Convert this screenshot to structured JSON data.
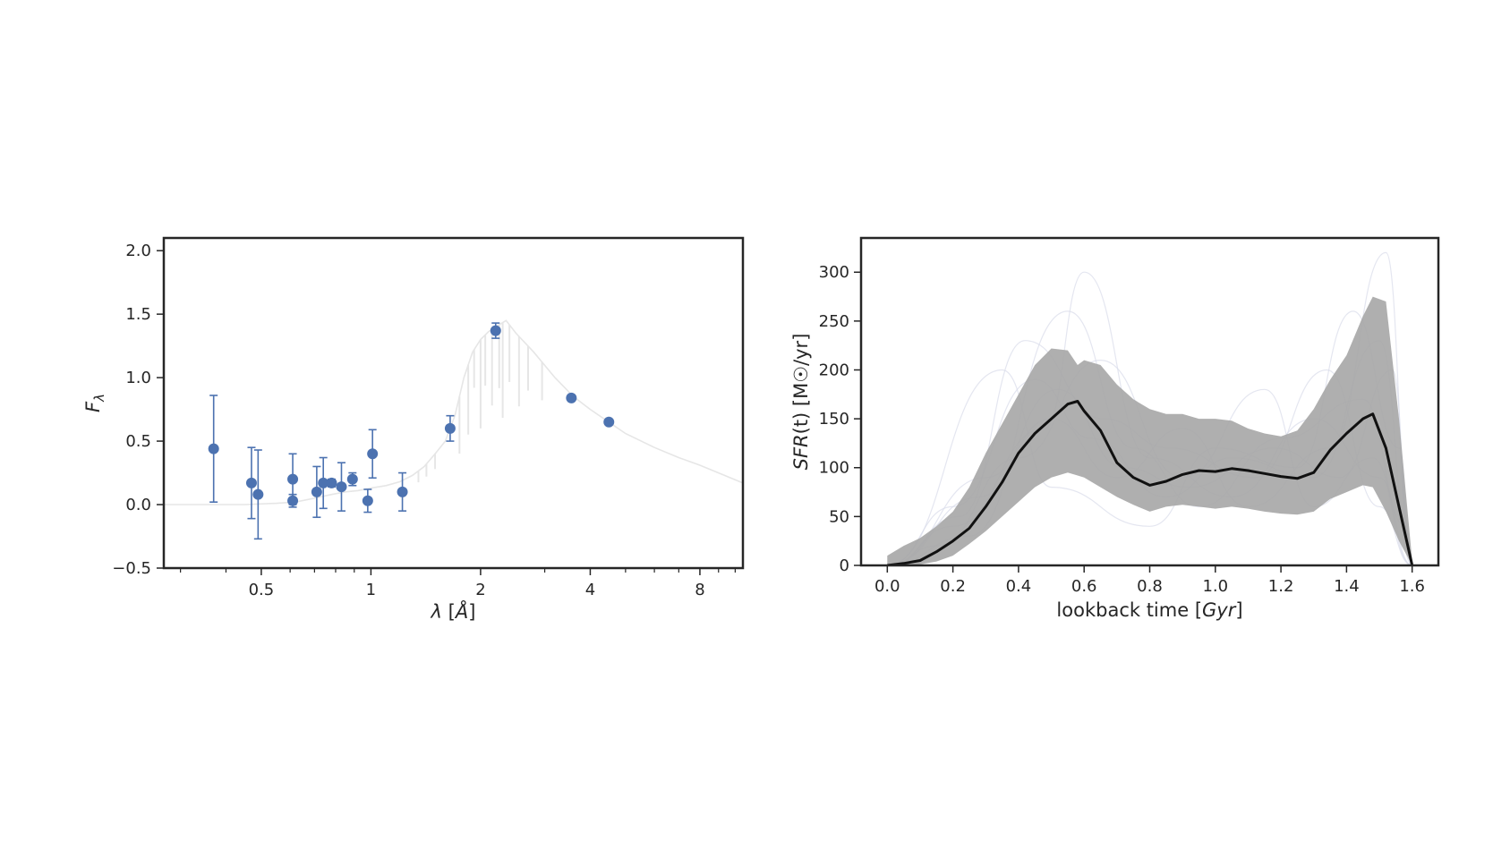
{
  "chart_data": [
    {
      "type": "scatter",
      "title": "",
      "xlabel": "λ [Å]",
      "ylabel": "F_λ",
      "ylabel_main": "F",
      "ylabel_sub": "λ",
      "xscale": "log",
      "xlim": [
        0.27,
        10.5
      ],
      "ylim": [
        -0.5,
        2.1
      ],
      "xticks": [
        {
          "value": 0.5,
          "label": "0.5"
        },
        {
          "value": 1,
          "label": "1"
        },
        {
          "value": 2,
          "label": "2"
        },
        {
          "value": 4,
          "label": "4"
        },
        {
          "value": 8,
          "label": "8"
        }
      ],
      "xticks_minor": [
        0.3,
        0.4,
        0.6,
        0.7,
        0.8,
        0.9,
        3,
        5,
        6,
        7,
        9,
        10
      ],
      "yticks": [
        {
          "value": -0.5,
          "label": "−0.5"
        },
        {
          "value": 0.0,
          "label": "0.0"
        },
        {
          "value": 0.5,
          "label": "0.5"
        },
        {
          "value": 1.0,
          "label": "1.0"
        },
        {
          "value": 1.5,
          "label": "1.5"
        },
        {
          "value": 2.0,
          "label": "2.0"
        }
      ],
      "grid": false,
      "colors": {
        "points": "#4c72b0",
        "model": "#e6e6e6",
        "frame": "#262626"
      },
      "points": [
        {
          "x": 0.37,
          "y": 0.44,
          "err": 0.42
        },
        {
          "x": 0.47,
          "y": 0.17,
          "err": 0.28
        },
        {
          "x": 0.49,
          "y": 0.08,
          "err": 0.35
        },
        {
          "x": 0.61,
          "y": 0.2,
          "err": 0.2
        },
        {
          "x": 0.61,
          "y": 0.03,
          "err": 0.05
        },
        {
          "x": 0.71,
          "y": 0.1,
          "err": 0.2
        },
        {
          "x": 0.74,
          "y": 0.17,
          "err": 0.2
        },
        {
          "x": 0.78,
          "y": 0.17,
          "err": 0.03
        },
        {
          "x": 0.83,
          "y": 0.14,
          "err": 0.19
        },
        {
          "x": 0.89,
          "y": 0.2,
          "err": 0.05
        },
        {
          "x": 0.98,
          "y": 0.03,
          "err": 0.09
        },
        {
          "x": 1.01,
          "y": 0.4,
          "err": 0.19
        },
        {
          "x": 1.22,
          "y": 0.1,
          "err": 0.15
        },
        {
          "x": 1.65,
          "y": 0.6,
          "err": 0.1
        },
        {
          "x": 2.2,
          "y": 1.37,
          "err": 0.06
        },
        {
          "x": 3.55,
          "y": 0.84,
          "err": 0.02
        },
        {
          "x": 4.5,
          "y": 0.65,
          "err": 0.02
        }
      ],
      "model_curve": [
        [
          0.27,
          0.0
        ],
        [
          0.45,
          0.0
        ],
        [
          0.55,
          0.01
        ],
        [
          0.62,
          0.02
        ],
        [
          0.7,
          0.05
        ],
        [
          0.78,
          0.08
        ],
        [
          0.85,
          0.1
        ],
        [
          0.92,
          0.11
        ],
        [
          1.0,
          0.13
        ],
        [
          1.1,
          0.15
        ],
        [
          1.2,
          0.18
        ],
        [
          1.3,
          0.23
        ],
        [
          1.4,
          0.3
        ],
        [
          1.5,
          0.4
        ],
        [
          1.6,
          0.5
        ],
        [
          1.7,
          0.7
        ],
        [
          1.8,
          1.0
        ],
        [
          1.9,
          1.2
        ],
        [
          2.0,
          1.3
        ],
        [
          2.1,
          1.36
        ],
        [
          2.2,
          1.4
        ],
        [
          2.35,
          1.45
        ],
        [
          2.5,
          1.35
        ],
        [
          2.8,
          1.2
        ],
        [
          3.2,
          1.0
        ],
        [
          3.6,
          0.85
        ],
        [
          4.0,
          0.75
        ],
        [
          4.5,
          0.65
        ],
        [
          5.0,
          0.56
        ],
        [
          6.0,
          0.45
        ],
        [
          7.0,
          0.37
        ],
        [
          8.0,
          0.31
        ],
        [
          9.0,
          0.25
        ],
        [
          10.5,
          0.17
        ]
      ],
      "absorption_lines": [
        [
          1.75,
          0.45
        ],
        [
          1.85,
          0.55
        ],
        [
          1.92,
          0.3
        ],
        [
          2.0,
          0.7
        ],
        [
          2.06,
          0.4
        ],
        [
          2.15,
          0.6
        ],
        [
          2.25,
          0.5
        ],
        [
          2.3,
          0.75
        ],
        [
          2.4,
          0.45
        ],
        [
          2.55,
          0.55
        ],
        [
          2.7,
          0.35
        ],
        [
          2.95,
          0.3
        ],
        [
          1.5,
          0.12
        ],
        [
          1.42,
          0.1
        ],
        [
          1.35,
          0.09
        ]
      ]
    },
    {
      "type": "line",
      "title": "",
      "xlabel": "lookback time [Gyr]",
      "xlabel_main": "lookback time [",
      "xlabel_italic": "Gyr",
      "xlabel_end": "]",
      "ylabel": "SFR(t) [M☉/yr]",
      "ylabel_italic": "SFR",
      "ylabel_rest": "(t) [M☉/yr]",
      "xlim": [
        -0.08,
        1.68
      ],
      "ylim": [
        0,
        335
      ],
      "xticks": [
        {
          "value": 0.0,
          "label": "0.0"
        },
        {
          "value": 0.2,
          "label": "0.2"
        },
        {
          "value": 0.4,
          "label": "0.4"
        },
        {
          "value": 0.6,
          "label": "0.6"
        },
        {
          "value": 0.8,
          "label": "0.8"
        },
        {
          "value": 1.0,
          "label": "1.0"
        },
        {
          "value": 1.2,
          "label": "1.2"
        },
        {
          "value": 1.4,
          "label": "1.4"
        },
        {
          "value": 1.6,
          "label": "1.6"
        }
      ],
      "yticks": [
        {
          "value": 0,
          "label": "0"
        },
        {
          "value": 50,
          "label": "50"
        },
        {
          "value": 100,
          "label": "100"
        },
        {
          "value": 150,
          "label": "150"
        },
        {
          "value": 200,
          "label": "200"
        },
        {
          "value": 250,
          "label": "250"
        },
        {
          "value": 300,
          "label": "300"
        }
      ],
      "grid": false,
      "colors": {
        "median": "#111111",
        "band": "#a6a6a6",
        "samples": "#d8dcea",
        "frame": "#262626"
      },
      "x": [
        0.0,
        0.05,
        0.1,
        0.15,
        0.2,
        0.25,
        0.3,
        0.35,
        0.4,
        0.45,
        0.5,
        0.55,
        0.58,
        0.6,
        0.65,
        0.7,
        0.75,
        0.8,
        0.85,
        0.9,
        0.95,
        1.0,
        1.05,
        1.1,
        1.15,
        1.2,
        1.25,
        1.3,
        1.35,
        1.4,
        1.45,
        1.48,
        1.52,
        1.56,
        1.6
      ],
      "median": [
        0,
        2,
        5,
        14,
        25,
        38,
        60,
        85,
        115,
        135,
        150,
        165,
        168,
        158,
        138,
        105,
        90,
        82,
        86,
        93,
        97,
        96,
        99,
        97,
        94,
        91,
        89,
        95,
        118,
        135,
        150,
        155,
        120,
        60,
        0
      ],
      "upper": [
        10,
        20,
        28,
        40,
        55,
        80,
        115,
        145,
        175,
        205,
        222,
        220,
        205,
        210,
        205,
        185,
        170,
        160,
        155,
        155,
        150,
        150,
        148,
        140,
        135,
        132,
        138,
        160,
        190,
        215,
        255,
        275,
        270,
        150,
        5
      ],
      "lower": [
        0,
        0,
        1,
        4,
        10,
        22,
        35,
        50,
        65,
        80,
        90,
        95,
        92,
        90,
        80,
        70,
        62,
        55,
        60,
        62,
        60,
        58,
        60,
        58,
        55,
        53,
        52,
        55,
        68,
        75,
        82,
        80,
        55,
        25,
        0
      ],
      "samples": [
        [
          [
            0.0,
            0
          ],
          [
            0.2,
            60
          ],
          [
            0.45,
            190
          ],
          [
            0.62,
            130
          ],
          [
            0.85,
            70
          ],
          [
            1.05,
            110
          ],
          [
            1.3,
            90
          ],
          [
            1.5,
            230
          ],
          [
            1.6,
            0
          ]
        ],
        [
          [
            0.0,
            0
          ],
          [
            0.25,
            30
          ],
          [
            0.55,
            260
          ],
          [
            0.75,
            120
          ],
          [
            0.95,
            60
          ],
          [
            1.2,
            130
          ],
          [
            1.45,
            170
          ],
          [
            1.58,
            40
          ],
          [
            1.6,
            0
          ]
        ],
        [
          [
            0.0,
            0
          ],
          [
            0.3,
            90
          ],
          [
            0.5,
            150
          ],
          [
            0.7,
            90
          ],
          [
            0.9,
            140
          ],
          [
            1.1,
            60
          ],
          [
            1.35,
            120
          ],
          [
            1.52,
            320
          ],
          [
            1.6,
            0
          ]
        ],
        [
          [
            0.0,
            0
          ],
          [
            0.15,
            20
          ],
          [
            0.4,
            110
          ],
          [
            0.65,
            210
          ],
          [
            0.9,
            90
          ],
          [
            1.15,
            180
          ],
          [
            1.3,
            60
          ],
          [
            1.48,
            110
          ],
          [
            1.6,
            0
          ]
        ],
        [
          [
            0.0,
            0
          ],
          [
            0.35,
            200
          ],
          [
            0.5,
            80
          ],
          [
            0.8,
            40
          ],
          [
            1.0,
            120
          ],
          [
            1.25,
            100
          ],
          [
            1.42,
            260
          ],
          [
            1.56,
            120
          ],
          [
            1.6,
            0
          ]
        ],
        [
          [
            0.0,
            0
          ],
          [
            0.2,
            40
          ],
          [
            0.48,
            140
          ],
          [
            0.6,
            300
          ],
          [
            0.8,
            110
          ],
          [
            1.05,
            70
          ],
          [
            1.3,
            150
          ],
          [
            1.5,
            90
          ],
          [
            1.6,
            0
          ]
        ],
        [
          [
            0.0,
            0
          ],
          [
            0.28,
            70
          ],
          [
            0.52,
            180
          ],
          [
            0.72,
            100
          ],
          [
            0.92,
            80
          ],
          [
            1.18,
            120
          ],
          [
            1.38,
            90
          ],
          [
            1.54,
            200
          ],
          [
            1.6,
            0
          ]
        ],
        [
          [
            0.0,
            0
          ],
          [
            0.22,
            50
          ],
          [
            0.42,
            230
          ],
          [
            0.66,
            150
          ],
          [
            0.86,
            120
          ],
          [
            1.12,
            90
          ],
          [
            1.34,
            200
          ],
          [
            1.5,
            60
          ],
          [
            1.6,
            0
          ]
        ]
      ]
    }
  ]
}
